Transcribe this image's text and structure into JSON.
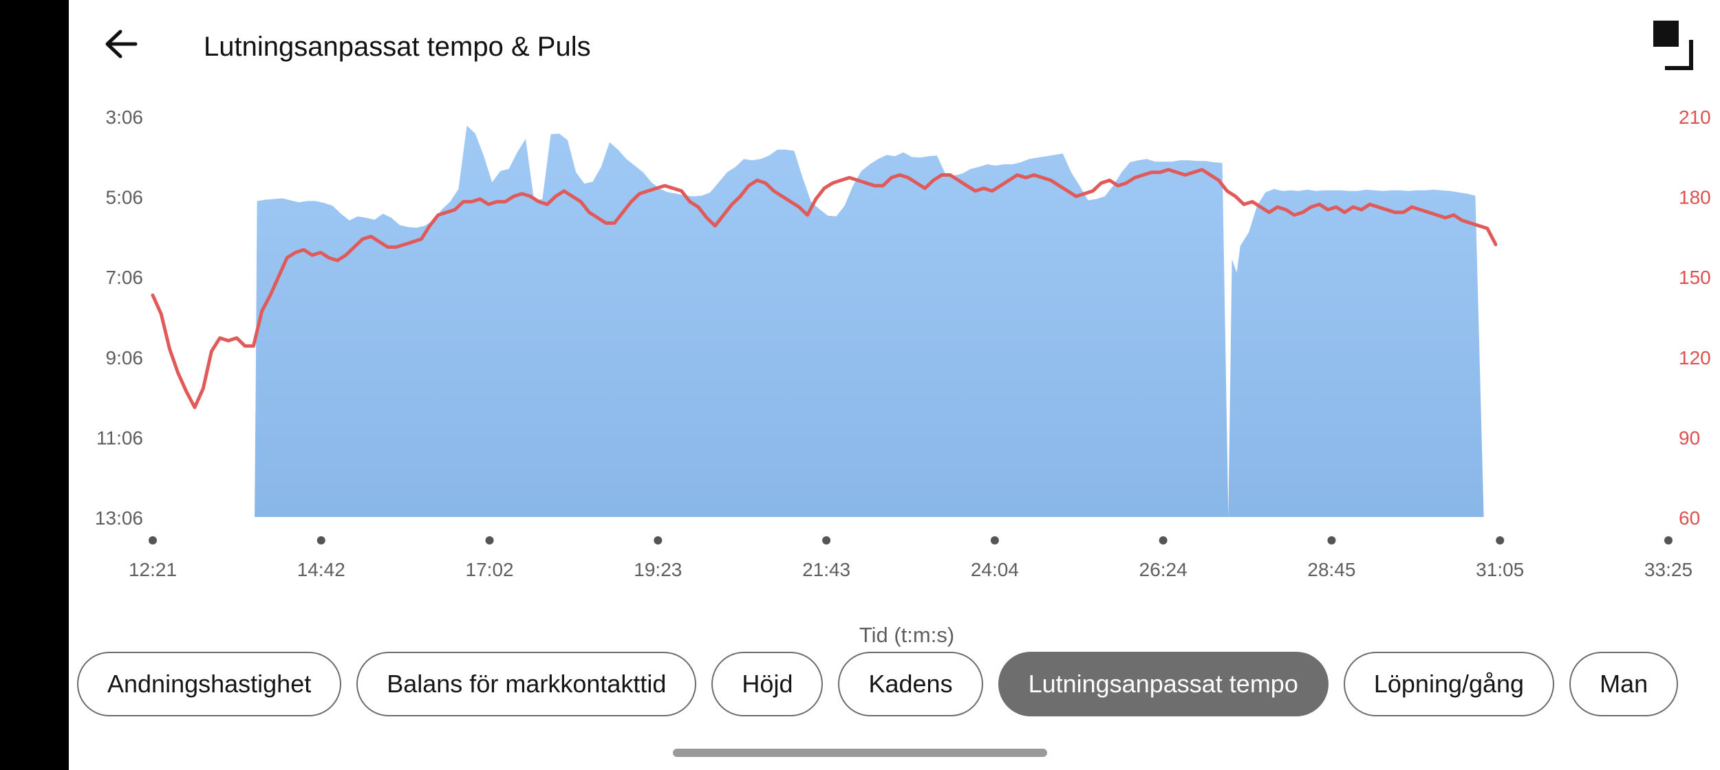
{
  "header": {
    "title": "Lutningsanpassat tempo & Puls",
    "back_icon": "arrow-left-icon",
    "fullscreen_icon": "fullscreen-exit-icon"
  },
  "chips": [
    {
      "label": "Andningshastighet",
      "active": false
    },
    {
      "label": "Balans för markkontakttid",
      "active": false
    },
    {
      "label": "Höjd",
      "active": false
    },
    {
      "label": "Kadens",
      "active": false
    },
    {
      "label": "Lutningsanpassat tempo",
      "active": true
    },
    {
      "label": "Löpning/gång",
      "active": false
    },
    {
      "label": "Man",
      "active": false
    }
  ],
  "colors": {
    "pace_fill_top": "#a0c9f5",
    "pace_fill_bottom": "#89b7e8",
    "hr_line": "#e05a5a",
    "axis_text": "#5e5e5e",
    "hr_axis_text": "#de5050",
    "active_chip": "#6e6e6e"
  },
  "chart_data": {
    "type": "area+line",
    "xlabel": "Tid (t:m:s)",
    "x_ticks": [
      "12:21",
      "14:42",
      "17:02",
      "19:23",
      "21:43",
      "24:04",
      "26:24",
      "28:45",
      "31:05",
      "33:25"
    ],
    "y_left_ticks": [
      "3:06",
      "5:06",
      "7:06",
      "9:06",
      "11:06",
      "13:06"
    ],
    "y_right_ticks": [
      "210",
      "180",
      "150",
      "120",
      "90",
      "60"
    ],
    "y_left_range_sec_per_km": [
      186,
      786
    ],
    "y_right_range_bpm": [
      60,
      210
    ],
    "x_range_sec": [
      741,
      2005
    ],
    "series": [
      {
        "kind": "pace-area",
        "values": [
          [
            826,
            786
          ],
          [
            827,
            560
          ],
          [
            828,
            313
          ],
          [
            835,
            311
          ],
          [
            842,
            310
          ],
          [
            849,
            309
          ],
          [
            856,
            312
          ],
          [
            863,
            315
          ],
          [
            870,
            313
          ],
          [
            877,
            313
          ],
          [
            884,
            316
          ],
          [
            891,
            320
          ],
          [
            898,
            332
          ],
          [
            905,
            342
          ],
          [
            912,
            336
          ],
          [
            919,
            338
          ],
          [
            926,
            341
          ],
          [
            933,
            332
          ],
          [
            940,
            338
          ],
          [
            947,
            349
          ],
          [
            954,
            352
          ],
          [
            961,
            353
          ],
          [
            968,
            350
          ],
          [
            975,
            342
          ],
          [
            982,
            326
          ],
          [
            989,
            314
          ],
          [
            996,
            295
          ],
          [
            1003,
            200
          ],
          [
            1010,
            212
          ],
          [
            1017,
            245
          ],
          [
            1024,
            285
          ],
          [
            1031,
            268
          ],
          [
            1038,
            265
          ],
          [
            1045,
            240
          ],
          [
            1052,
            220
          ],
          [
            1059,
            312
          ],
          [
            1066,
            310
          ],
          [
            1073,
            213
          ],
          [
            1080,
            212
          ],
          [
            1087,
            222
          ],
          [
            1094,
            270
          ],
          [
            1101,
            287
          ],
          [
            1108,
            284
          ],
          [
            1115,
            262
          ],
          [
            1122,
            225
          ],
          [
            1129,
            236
          ],
          [
            1136,
            250
          ],
          [
            1143,
            260
          ],
          [
            1150,
            270
          ],
          [
            1157,
            285
          ],
          [
            1164,
            295
          ],
          [
            1171,
            300
          ],
          [
            1178,
            302
          ],
          [
            1185,
            305
          ],
          [
            1192,
            306
          ],
          [
            1199,
            305
          ],
          [
            1206,
            300
          ],
          [
            1213,
            285
          ],
          [
            1220,
            270
          ],
          [
            1227,
            262
          ],
          [
            1234,
            250
          ],
          [
            1241,
            252
          ],
          [
            1248,
            250
          ],
          [
            1255,
            245
          ],
          [
            1262,
            236
          ],
          [
            1269,
            236
          ],
          [
            1276,
            238
          ],
          [
            1283,
            278
          ],
          [
            1290,
            314
          ],
          [
            1297,
            325
          ],
          [
            1304,
            335
          ],
          [
            1311,
            336
          ],
          [
            1318,
            320
          ],
          [
            1325,
            290
          ],
          [
            1332,
            268
          ],
          [
            1339,
            258
          ],
          [
            1346,
            250
          ],
          [
            1353,
            244
          ],
          [
            1360,
            246
          ],
          [
            1367,
            240
          ],
          [
            1374,
            247
          ],
          [
            1381,
            248
          ],
          [
            1388,
            246
          ],
          [
            1395,
            245
          ],
          [
            1402,
            272
          ],
          [
            1409,
            275
          ],
          [
            1416,
            272
          ],
          [
            1423,
            265
          ],
          [
            1430,
            262
          ],
          [
            1437,
            258
          ],
          [
            1444,
            260
          ],
          [
            1451,
            258
          ],
          [
            1458,
            258
          ],
          [
            1465,
            255
          ],
          [
            1472,
            250
          ],
          [
            1479,
            248
          ],
          [
            1486,
            246
          ],
          [
            1493,
            244
          ],
          [
            1500,
            242
          ],
          [
            1507,
            270
          ],
          [
            1514,
            290
          ],
          [
            1521,
            312
          ],
          [
            1528,
            310
          ],
          [
            1535,
            306
          ],
          [
            1542,
            290
          ],
          [
            1549,
            270
          ],
          [
            1556,
            255
          ],
          [
            1563,
            252
          ],
          [
            1570,
            250
          ],
          [
            1577,
            254
          ],
          [
            1584,
            254
          ],
          [
            1591,
            254
          ],
          [
            1598,
            252
          ],
          [
            1605,
            252
          ],
          [
            1612,
            253
          ],
          [
            1619,
            253
          ],
          [
            1626,
            255
          ],
          [
            1633,
            256
          ],
          [
            1638,
            786
          ],
          [
            1641,
            400
          ],
          [
            1645,
            420
          ],
          [
            1648,
            380
          ],
          [
            1655,
            360
          ],
          [
            1662,
            320
          ],
          [
            1669,
            300
          ],
          [
            1676,
            295
          ],
          [
            1683,
            298
          ],
          [
            1690,
            297
          ],
          [
            1697,
            298
          ],
          [
            1704,
            296
          ],
          [
            1711,
            298
          ],
          [
            1718,
            297
          ],
          [
            1725,
            297
          ],
          [
            1732,
            297
          ],
          [
            1739,
            298
          ],
          [
            1746,
            298
          ],
          [
            1753,
            296
          ],
          [
            1760,
            297
          ],
          [
            1767,
            298
          ],
          [
            1774,
            297
          ],
          [
            1781,
            297
          ],
          [
            1788,
            298
          ],
          [
            1795,
            297
          ],
          [
            1802,
            297
          ],
          [
            1809,
            296
          ],
          [
            1816,
            297
          ],
          [
            1823,
            298
          ],
          [
            1830,
            300
          ],
          [
            1837,
            302
          ],
          [
            1844,
            305
          ],
          [
            1851,
            786
          ]
        ]
      },
      {
        "kind": "heart-rate-line",
        "values": [
          [
            741,
            143
          ],
          [
            748,
            136
          ],
          [
            755,
            123
          ],
          [
            762,
            114
          ],
          [
            769,
            107
          ],
          [
            776,
            101
          ],
          [
            783,
            108
          ],
          [
            790,
            122
          ],
          [
            797,
            127
          ],
          [
            804,
            126
          ],
          [
            811,
            127
          ],
          [
            818,
            124
          ],
          [
            825,
            124
          ],
          [
            832,
            137
          ],
          [
            839,
            143
          ],
          [
            846,
            150
          ],
          [
            853,
            157
          ],
          [
            860,
            159
          ],
          [
            867,
            160
          ],
          [
            874,
            158
          ],
          [
            881,
            159
          ],
          [
            888,
            157
          ],
          [
            895,
            156
          ],
          [
            902,
            158
          ],
          [
            909,
            161
          ],
          [
            916,
            164
          ],
          [
            923,
            165
          ],
          [
            930,
            163
          ],
          [
            937,
            161
          ],
          [
            944,
            161
          ],
          [
            951,
            162
          ],
          [
            958,
            163
          ],
          [
            965,
            164
          ],
          [
            972,
            169
          ],
          [
            979,
            173
          ],
          [
            986,
            174
          ],
          [
            993,
            175
          ],
          [
            1000,
            178
          ],
          [
            1007,
            178
          ],
          [
            1014,
            179
          ],
          [
            1021,
            177
          ],
          [
            1028,
            178
          ],
          [
            1035,
            178
          ],
          [
            1042,
            180
          ],
          [
            1049,
            181
          ],
          [
            1056,
            180
          ],
          [
            1063,
            178
          ],
          [
            1070,
            177
          ],
          [
            1077,
            180
          ],
          [
            1084,
            182
          ],
          [
            1091,
            180
          ],
          [
            1098,
            178
          ],
          [
            1105,
            174
          ],
          [
            1112,
            172
          ],
          [
            1119,
            170
          ],
          [
            1126,
            170
          ],
          [
            1133,
            174
          ],
          [
            1140,
            178
          ],
          [
            1147,
            181
          ],
          [
            1154,
            182
          ],
          [
            1161,
            183
          ],
          [
            1168,
            184
          ],
          [
            1175,
            183
          ],
          [
            1182,
            182
          ],
          [
            1189,
            178
          ],
          [
            1196,
            176
          ],
          [
            1203,
            172
          ],
          [
            1210,
            169
          ],
          [
            1217,
            173
          ],
          [
            1224,
            177
          ],
          [
            1231,
            180
          ],
          [
            1238,
            184
          ],
          [
            1245,
            186
          ],
          [
            1252,
            185
          ],
          [
            1259,
            182
          ],
          [
            1266,
            180
          ],
          [
            1273,
            178
          ],
          [
            1280,
            176
          ],
          [
            1287,
            173
          ],
          [
            1294,
            179
          ],
          [
            1301,
            183
          ],
          [
            1308,
            185
          ],
          [
            1315,
            186
          ],
          [
            1322,
            187
          ],
          [
            1329,
            186
          ],
          [
            1336,
            185
          ],
          [
            1343,
            184
          ],
          [
            1350,
            184
          ],
          [
            1357,
            187
          ],
          [
            1364,
            188
          ],
          [
            1371,
            187
          ],
          [
            1378,
            185
          ],
          [
            1385,
            183
          ],
          [
            1392,
            186
          ],
          [
            1399,
            188
          ],
          [
            1406,
            188
          ],
          [
            1413,
            186
          ],
          [
            1420,
            184
          ],
          [
            1427,
            182
          ],
          [
            1434,
            183
          ],
          [
            1441,
            182
          ],
          [
            1448,
            184
          ],
          [
            1455,
            186
          ],
          [
            1462,
            188
          ],
          [
            1469,
            187
          ],
          [
            1476,
            188
          ],
          [
            1483,
            187
          ],
          [
            1490,
            186
          ],
          [
            1497,
            184
          ],
          [
            1504,
            182
          ],
          [
            1511,
            180
          ],
          [
            1518,
            181
          ],
          [
            1525,
            182
          ],
          [
            1532,
            185
          ],
          [
            1539,
            186
          ],
          [
            1546,
            184
          ],
          [
            1553,
            185
          ],
          [
            1560,
            187
          ],
          [
            1567,
            188
          ],
          [
            1574,
            189
          ],
          [
            1581,
            189
          ],
          [
            1588,
            190
          ],
          [
            1595,
            189
          ],
          [
            1602,
            188
          ],
          [
            1609,
            189
          ],
          [
            1616,
            190
          ],
          [
            1623,
            188
          ],
          [
            1630,
            186
          ],
          [
            1637,
            182
          ],
          [
            1644,
            180
          ],
          [
            1651,
            177
          ],
          [
            1658,
            178
          ],
          [
            1665,
            176
          ],
          [
            1672,
            174
          ],
          [
            1679,
            176
          ],
          [
            1686,
            175
          ],
          [
            1693,
            173
          ],
          [
            1700,
            174
          ],
          [
            1707,
            176
          ],
          [
            1714,
            177
          ],
          [
            1721,
            175
          ],
          [
            1728,
            176
          ],
          [
            1735,
            174
          ],
          [
            1742,
            176
          ],
          [
            1749,
            175
          ],
          [
            1756,
            177
          ],
          [
            1763,
            176
          ],
          [
            1770,
            175
          ],
          [
            1777,
            174
          ],
          [
            1784,
            174
          ],
          [
            1791,
            176
          ],
          [
            1798,
            175
          ],
          [
            1805,
            174
          ],
          [
            1812,
            173
          ],
          [
            1819,
            172
          ],
          [
            1826,
            173
          ],
          [
            1833,
            171
          ],
          [
            1840,
            170
          ],
          [
            1847,
            169
          ],
          [
            1854,
            168
          ],
          [
            1861,
            162
          ]
        ]
      }
    ]
  }
}
